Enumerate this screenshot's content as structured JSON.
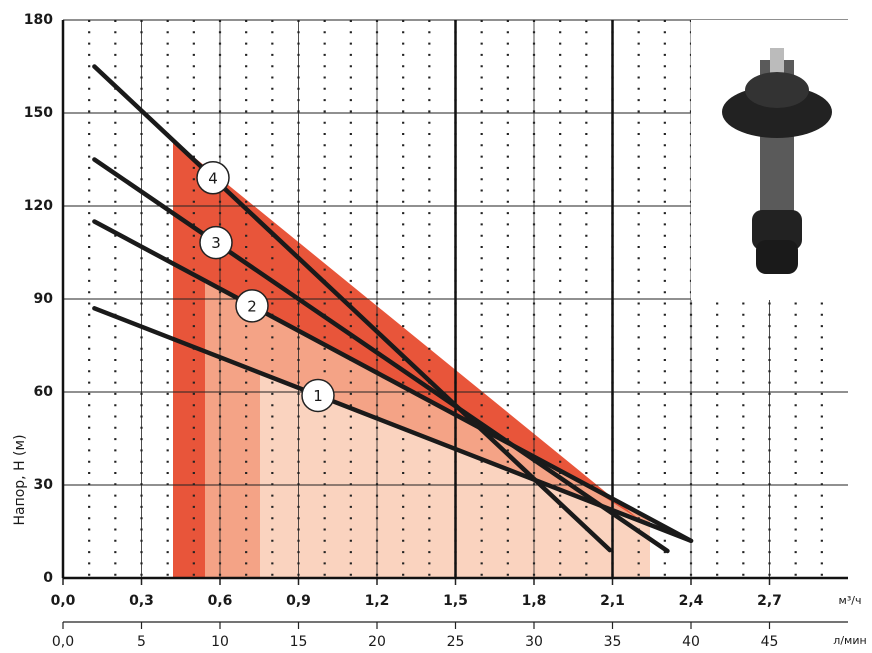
{
  "chart_data": {
    "type": "line",
    "y_label": "Напор, H (м)",
    "x_unit": "м³/ч",
    "x2_unit": "л/мин",
    "xlim": [
      0,
      3.0
    ],
    "ylim": [
      0,
      180
    ],
    "x2lim": [
      0,
      50
    ],
    "xticks": [
      {
        "value": 0,
        "label": "0,0"
      },
      {
        "value": 0.3,
        "label": "0,3"
      },
      {
        "value": 0.6,
        "label": "0,6"
      },
      {
        "value": 0.9,
        "label": "0,9"
      },
      {
        "value": 1.2,
        "label": "1,2"
      },
      {
        "value": 1.5,
        "label": "1,5"
      },
      {
        "value": 1.8,
        "label": "1,8"
      },
      {
        "value": 2.1,
        "label": "2,1"
      },
      {
        "value": 2.4,
        "label": "2,4"
      },
      {
        "value": 2.7,
        "label": "2,7"
      }
    ],
    "x2ticks": [
      {
        "value": 0,
        "label": "0,0"
      },
      5,
      10,
      15,
      20,
      25,
      30,
      35,
      40,
      45
    ],
    "yticks": [
      0,
      30,
      60,
      90,
      120,
      150,
      180
    ],
    "highlight_xticks": [
      1.5,
      2.1
    ],
    "grid": true,
    "series": [
      {
        "name": "1",
        "color": "#1a1a1a",
        "x": [
          0.12,
          2.4
        ],
        "values": [
          87,
          12
        ]
      },
      {
        "name": "2",
        "color": "#1a1a1a",
        "x": [
          0.12,
          2.4
        ],
        "values": [
          115,
          12
        ]
      },
      {
        "name": "3",
        "color": "#1a1a1a",
        "x": [
          0.12,
          2.31
        ],
        "values": [
          135,
          8.7
        ]
      },
      {
        "name": "4",
        "color": "#1a1a1a",
        "x": [
          0.12,
          2.09
        ],
        "values": [
          165,
          9
        ]
      }
    ]
  }
}
